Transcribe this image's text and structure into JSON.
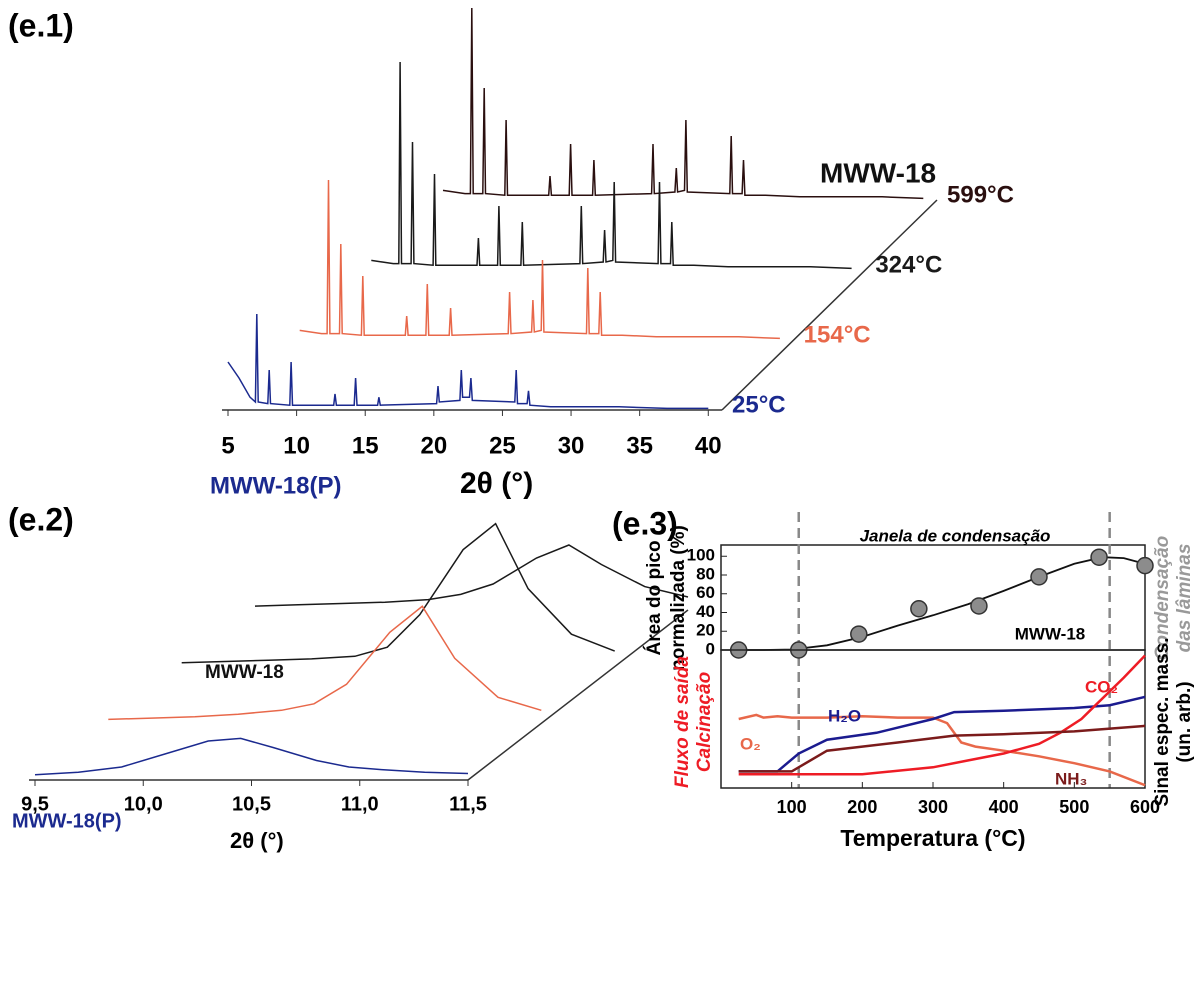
{
  "chart_data": [
    {
      "type": "waterfall",
      "label": "(e.1)",
      "xlabel": "2θ (°)",
      "annotations": [
        "MWW-18",
        "MWW-18(P)"
      ],
      "xlim": [
        5,
        41
      ],
      "xticks": [
        5,
        10,
        15,
        20,
        25,
        30,
        35,
        40
      ],
      "x": [
        5,
        5.8,
        6.6,
        7.0,
        7.1,
        7.2,
        7.9,
        8.0,
        8.1,
        9.5,
        9.6,
        9.7,
        12.7,
        12.8,
        12.9,
        14.2,
        14.3,
        14.4,
        15.9,
        16.0,
        16.1,
        20.2,
        20.3,
        20.4,
        21.9,
        22.0,
        22.1,
        22.6,
        22.7,
        22.8,
        25.9,
        26.0,
        26.1,
        26.8,
        26.9,
        27.0,
        28.5,
        31.0,
        33.5,
        37.0,
        40
      ],
      "series": [
        {
          "name": "25°C",
          "color": "#1b2a8f",
          "values": [
            30,
            20,
            8,
            5,
            60,
            5,
            4,
            25,
            4,
            3,
            30,
            3,
            3,
            10,
            3,
            3,
            20,
            3,
            3,
            8,
            3,
            4,
            15,
            5,
            6,
            25,
            8,
            8,
            20,
            6,
            5,
            25,
            4,
            4,
            12,
            3,
            2,
            2,
            2,
            1,
            1
          ]
        },
        {
          "name": "154°C",
          "color": "#e8684a",
          "values": [
            6,
            5,
            4,
            4,
            100,
            4,
            4,
            60,
            4,
            3,
            40,
            3,
            3,
            15,
            3,
            3,
            35,
            3,
            3,
            20,
            3,
            4,
            30,
            4,
            5,
            25,
            5,
            6,
            50,
            5,
            4,
            45,
            4,
            4,
            30,
            3,
            3,
            2,
            2,
            2,
            1
          ]
        },
        {
          "name": "324°C",
          "color": "#1a1a1a",
          "values": [
            6,
            5,
            4,
            4,
            130,
            4,
            4,
            80,
            4,
            3,
            60,
            3,
            3,
            20,
            3,
            3,
            40,
            3,
            3,
            30,
            3,
            4,
            40,
            4,
            5,
            25,
            5,
            6,
            55,
            5,
            4,
            55,
            4,
            4,
            30,
            3,
            3,
            2,
            2,
            2,
            1
          ]
        },
        {
          "name": "599°C",
          "color": "#2a0f0f",
          "values": [
            6,
            5,
            4,
            4,
            120,
            4,
            4,
            70,
            4,
            3,
            50,
            3,
            3,
            15,
            3,
            3,
            35,
            3,
            3,
            25,
            3,
            4,
            35,
            4,
            5,
            20,
            5,
            6,
            50,
            5,
            4,
            40,
            4,
            4,
            25,
            3,
            3,
            2,
            2,
            2,
            1
          ]
        }
      ]
    },
    {
      "type": "waterfall",
      "label": "(e.2)",
      "xlabel": "2θ (°)",
      "annotations": [
        "MWW-18",
        "MWW-18(P)"
      ],
      "xlim": [
        9.5,
        11.5
      ],
      "xticks": [
        {
          "value": 9.5,
          "label": "9,5"
        },
        {
          "value": 10.0,
          "label": "10,0"
        },
        {
          "value": 10.5,
          "label": "10,5"
        },
        {
          "value": 11.0,
          "label": "11,0"
        },
        {
          "value": 11.5,
          "label": "11,5"
        }
      ],
      "x": [
        9.5,
        9.7,
        9.9,
        10.1,
        10.3,
        10.45,
        10.6,
        10.8,
        10.95,
        11.1,
        11.3,
        11.5
      ],
      "series": [
        {
          "color": "#1b2a8f",
          "values": [
            4,
            6,
            10,
            20,
            30,
            32,
            25,
            15,
            10,
            8,
            6,
            5
          ]
        },
        {
          "color": "#e8684a",
          "values": [
            3,
            4,
            5,
            7,
            10,
            15,
            30,
            70,
            90,
            50,
            20,
            10
          ]
        },
        {
          "color": "#1a1a1a",
          "values": [
            3,
            4,
            5,
            6,
            8,
            15,
            40,
            90,
            110,
            60,
            25,
            12
          ]
        },
        {
          "color": "#1a1a1a",
          "values": [
            3,
            4,
            5,
            6,
            8,
            12,
            20,
            40,
            50,
            35,
            18,
            10
          ]
        }
      ]
    },
    {
      "type": "scatter",
      "label": "(e.3)",
      "title": "Janela de condensação",
      "ylabel": [
        "Área do pico",
        "normalizada (%)"
      ],
      "y2label": [
        "Condensação",
        "das lâminas"
      ],
      "annotations": [
        "MWW-18"
      ],
      "xlim": [
        0,
        600
      ],
      "ylim": [
        0,
        112
      ],
      "yticks": [
        0,
        20,
        40,
        60,
        80,
        100
      ],
      "vlines": [
        110,
        550
      ],
      "x": [
        25,
        110,
        195,
        280,
        365,
        450,
        535,
        600
      ],
      "series": [
        {
          "color": "#8c8c8c",
          "values": [
            0,
            0,
            17,
            44,
            47,
            78,
            99,
            90
          ]
        }
      ],
      "fit": {
        "color": "#111111",
        "x": [
          25,
          60,
          100,
          150,
          200,
          250,
          300,
          350,
          400,
          450,
          500,
          540,
          570,
          600
        ],
        "values": [
          0,
          0,
          0.5,
          5,
          14,
          26,
          37,
          49,
          63,
          78,
          92,
          99,
          98,
          92
        ]
      }
    },
    {
      "type": "line",
      "xlabel": "Temperatura (°C)",
      "ylabel": [
        "Fluxo de saída",
        "Calcinação"
      ],
      "y2label": [
        "Sinal espec. mass.",
        "(un. arb.)"
      ],
      "xlim": [
        0,
        600
      ],
      "ylim": [
        0,
        1
      ],
      "xticks": [
        100,
        200,
        300,
        400,
        500,
        600
      ],
      "series": [
        {
          "name": "O₂",
          "color": "#e8684a",
          "x": [
            25,
            50,
            60,
            80,
            100,
            150,
            200,
            250,
            300,
            320,
            340,
            360,
            400,
            450,
            500,
            550,
            600
          ],
          "values": [
            0.5,
            0.53,
            0.51,
            0.52,
            0.51,
            0.51,
            0.52,
            0.51,
            0.51,
            0.47,
            0.33,
            0.3,
            0.27,
            0.23,
            0.18,
            0.12,
            0.02
          ]
        },
        {
          "name": "H₂O",
          "color": "#1b1b8f",
          "x": [
            25,
            80,
            110,
            150,
            220,
            300,
            330,
            400,
            500,
            550,
            600
          ],
          "values": [
            0.12,
            0.12,
            0.25,
            0.35,
            0.4,
            0.5,
            0.55,
            0.56,
            0.58,
            0.6,
            0.66
          ]
        },
        {
          "name": "CO₂",
          "color": "#ee1c25",
          "x": [
            25,
            100,
            200,
            300,
            350,
            400,
            450,
            480,
            510,
            530,
            550,
            570,
            600
          ],
          "values": [
            0.1,
            0.1,
            0.1,
            0.15,
            0.2,
            0.25,
            0.32,
            0.4,
            0.5,
            0.6,
            0.7,
            0.8,
            0.96
          ]
        },
        {
          "name": "NH₃",
          "color": "#7b1b1b",
          "x": [
            25,
            100,
            150,
            250,
            330,
            400,
            500,
            600
          ],
          "values": [
            0.12,
            0.12,
            0.27,
            0.33,
            0.38,
            0.39,
            0.41,
            0.45
          ]
        }
      ]
    }
  ]
}
